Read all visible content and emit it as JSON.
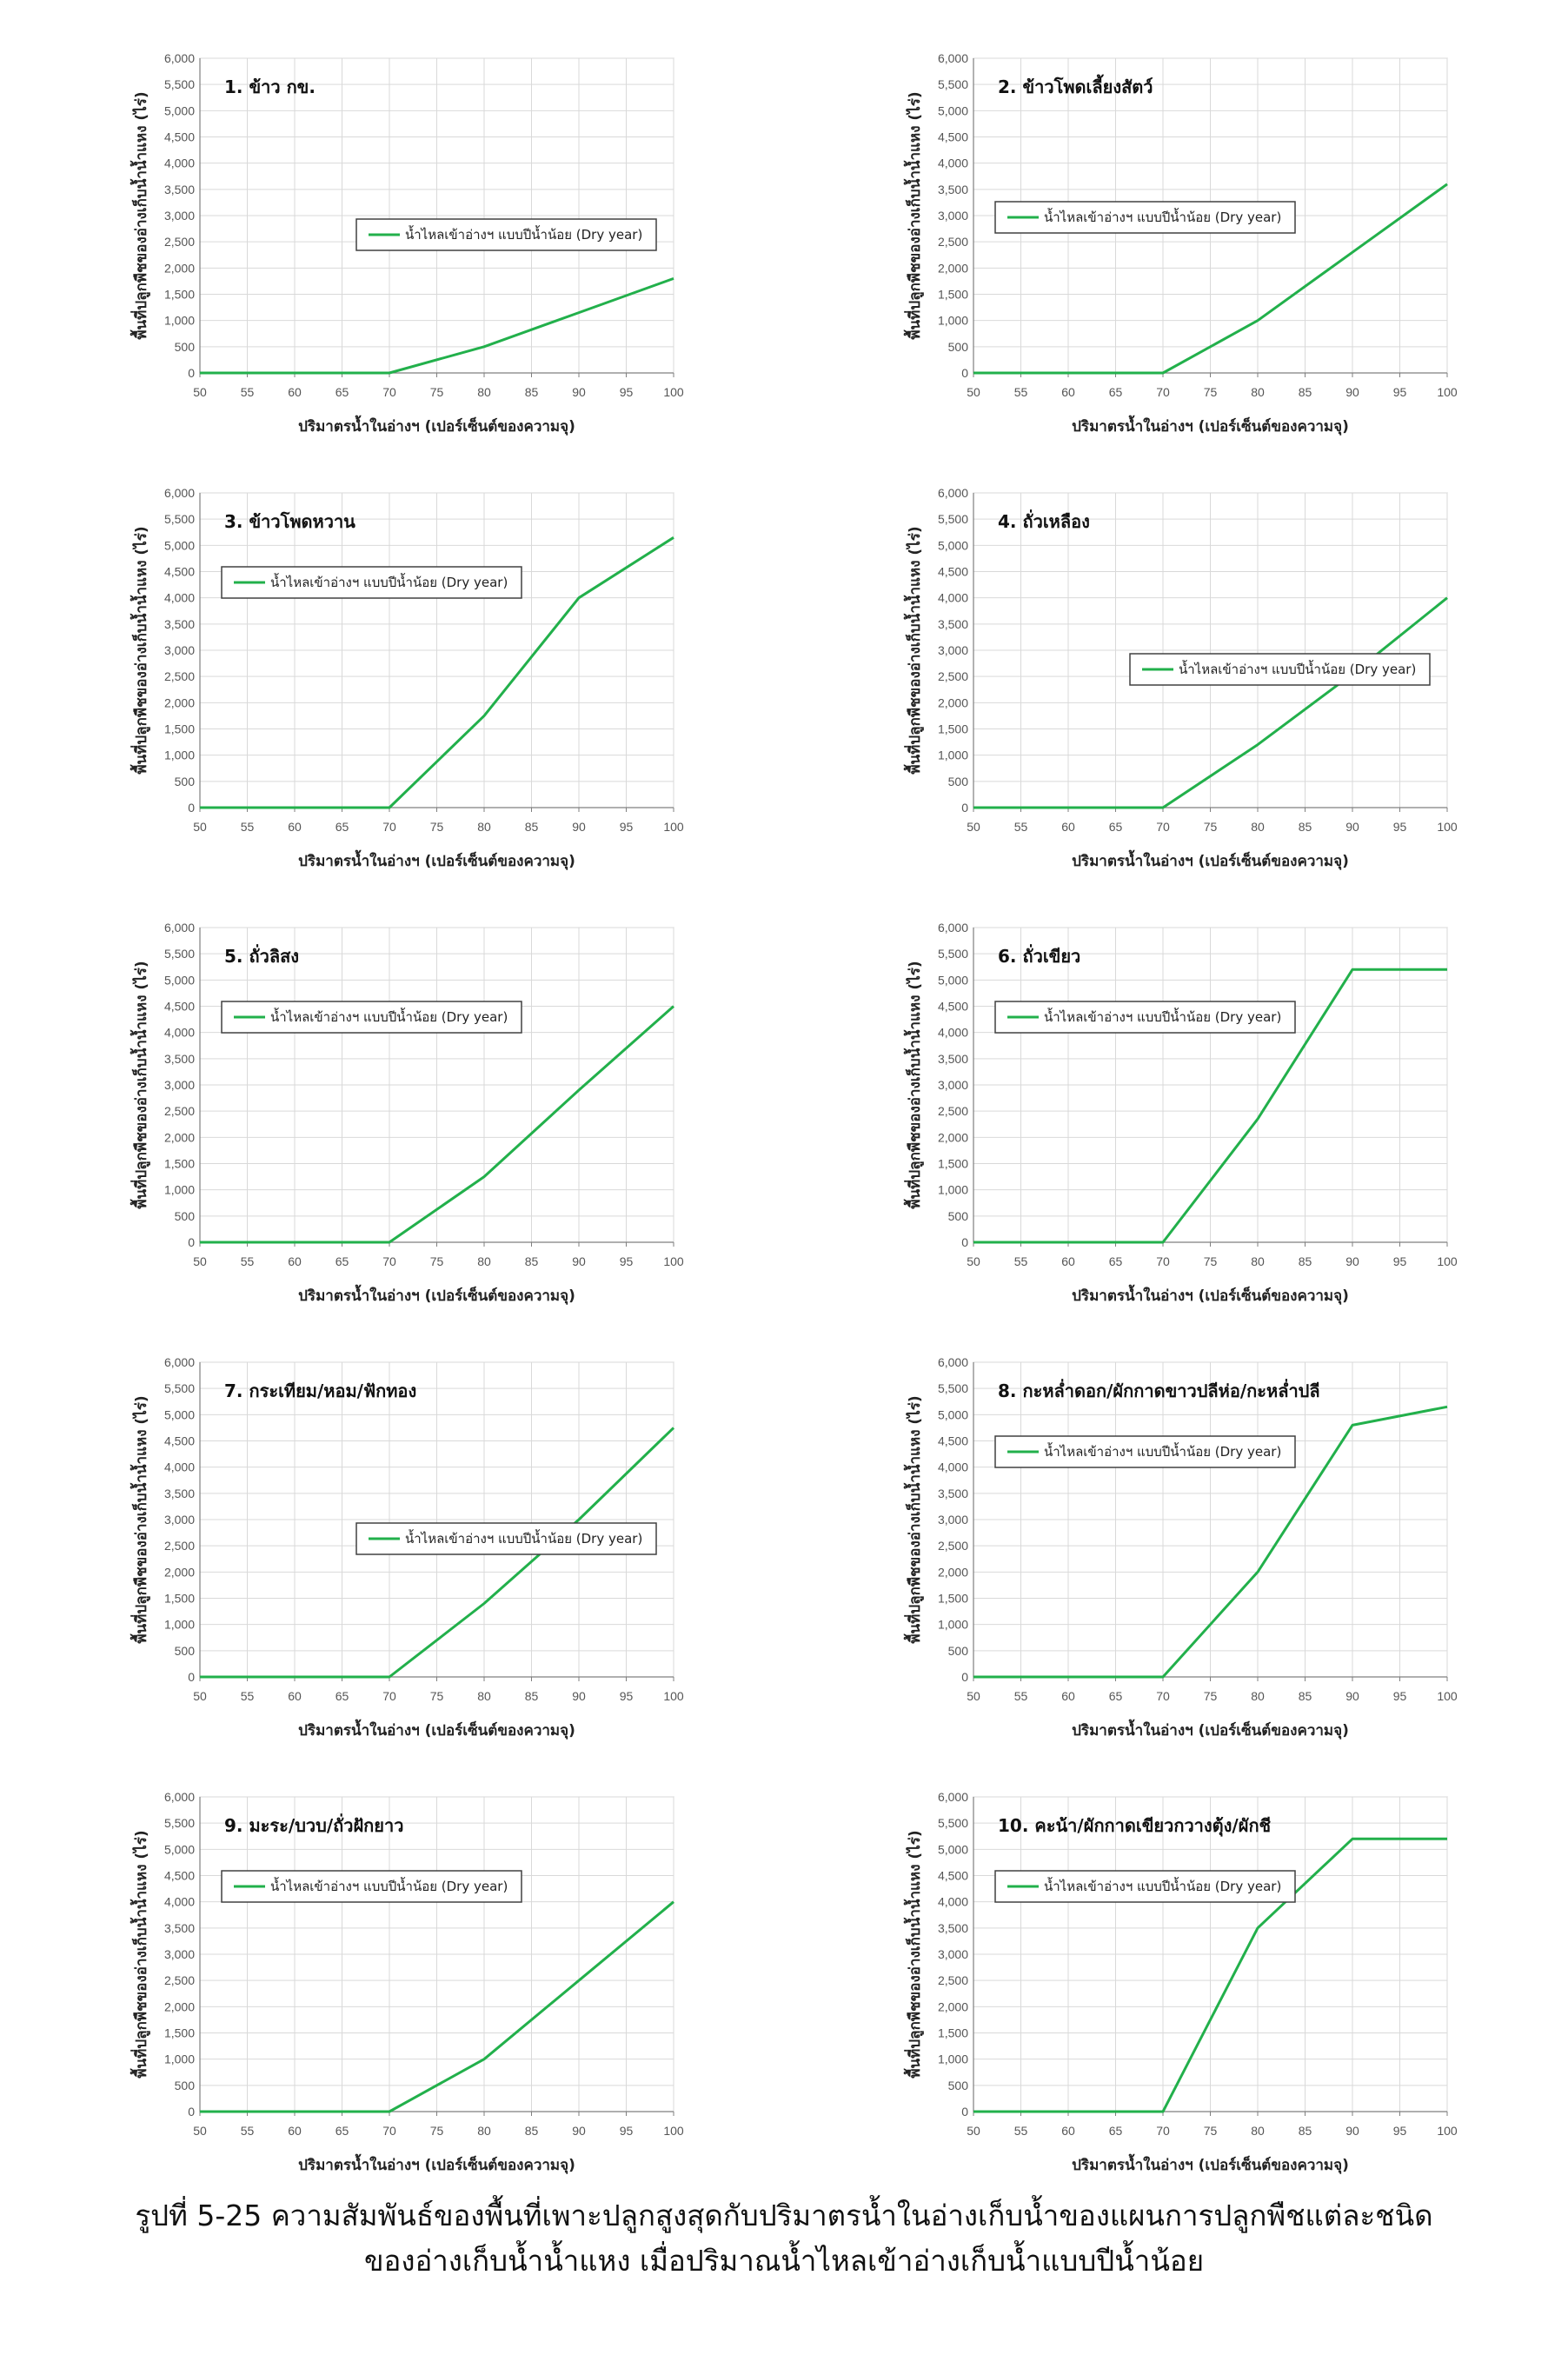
{
  "caption": {
    "line1": "รูปที่ 5-25 ความสัมพันธ์ของพื้นที่เพาะปลูกสูงสุดกับปริมาตรน้ำในอ่างเก็บน้ำของแผนการปลูกพืชแต่ละชนิด",
    "line2": "ของอ่างเก็บน้ำน้ำแหง เมื่อปริมาณน้ำไหลเข้าอ่างเก็บน้ำแบบปีน้ำน้อย"
  },
  "colors": {
    "series": "#22b04b",
    "grid": "#d9d9d9",
    "axis": "#7f7f7f"
  },
  "chart_data": [
    {
      "type": "line",
      "title": "1. ข้าว กข.",
      "xlabel": "ปริมาตรน้ำในอ่างฯ (เปอร์เซ็นต์ของความจุ)",
      "ylabel": "พื้นที่ปลูกพืชของอ่างเก็บน้ำน้ำแหง (ไร่)",
      "xlim": [
        50,
        100
      ],
      "ylim": [
        0,
        6000
      ],
      "legend_position": "center",
      "series": [
        {
          "name": "น้ำไหลเข้าอ่างฯ แบบปีน้ำน้อย (Dry year)",
          "x": [
            50,
            70,
            80,
            90,
            100
          ],
          "y": [
            0,
            0,
            500,
            1150,
            1800
          ]
        }
      ]
    },
    {
      "type": "line",
      "title": "2. ข้าวโพดเลี้ยงสัตว์",
      "xlabel": "ปริมาตรน้ำในอ่างฯ (เปอร์เซ็นต์ของความจุ)",
      "ylabel": "พื้นที่ปลูกพืชของอ่างเก็บน้ำน้ำแหง (ไร่)",
      "xlim": [
        50,
        100
      ],
      "ylim": [
        0,
        6000
      ],
      "legend_position": "left",
      "series": [
        {
          "name": "น้ำไหลเข้าอ่างฯ แบบปีน้ำน้อย (Dry year)",
          "x": [
            50,
            70,
            80,
            90,
            100
          ],
          "y": [
            0,
            0,
            1000,
            2300,
            3600
          ]
        }
      ]
    },
    {
      "type": "line",
      "title": "3. ข้าวโพดหวาน",
      "xlabel": "ปริมาตรน้ำในอ่างฯ (เปอร์เซ็นต์ของความจุ)",
      "ylabel": "พื้นที่ปลูกพืชของอ่างเก็บน้ำน้ำแหง (ไร่)",
      "xlim": [
        50,
        100
      ],
      "ylim": [
        0,
        6000
      ],
      "legend_position": "top-left",
      "series": [
        {
          "name": "น้ำไหลเข้าอ่างฯ แบบปีน้ำน้อย (Dry year)",
          "x": [
            50,
            70,
            80,
            90,
            100
          ],
          "y": [
            0,
            0,
            1750,
            4000,
            5150
          ]
        }
      ]
    },
    {
      "type": "line",
      "title": "4. ถั่วเหลือง",
      "xlabel": "ปริมาตรน้ำในอ่างฯ (เปอร์เซ็นต์ของความจุ)",
      "ylabel": "พื้นที่ปลูกพืชของอ่างเก็บน้ำน้ำแหง (ไร่)",
      "xlim": [
        50,
        100
      ],
      "ylim": [
        0,
        6000
      ],
      "legend_position": "center",
      "series": [
        {
          "name": "น้ำไหลเข้าอ่างฯ แบบปีน้ำน้อย (Dry year)",
          "x": [
            50,
            70,
            80,
            90,
            100
          ],
          "y": [
            0,
            0,
            1200,
            2550,
            4000
          ]
        }
      ]
    },
    {
      "type": "line",
      "title": "5. ถั่วลิสง",
      "xlabel": "ปริมาตรน้ำในอ่างฯ (เปอร์เซ็นต์ของความจุ)",
      "ylabel": "พื้นที่ปลูกพืชของอ่างเก็บน้ำน้ำแหง (ไร่)",
      "xlim": [
        50,
        100
      ],
      "ylim": [
        0,
        6000
      ],
      "legend_position": "top-left",
      "series": [
        {
          "name": "น้ำไหลเข้าอ่างฯ แบบปีน้ำน้อย (Dry year)",
          "x": [
            50,
            70,
            80,
            90,
            100
          ],
          "y": [
            0,
            0,
            1250,
            2900,
            4500
          ]
        }
      ]
    },
    {
      "type": "line",
      "title": "6. ถั่วเขียว",
      "xlabel": "ปริมาตรน้ำในอ่างฯ (เปอร์เซ็นต์ของความจุ)",
      "ylabel": "พื้นที่ปลูกพืชของอ่างเก็บน้ำน้ำแหง (ไร่)",
      "xlim": [
        50,
        100
      ],
      "ylim": [
        0,
        6000
      ],
      "legend_position": "top-left",
      "series": [
        {
          "name": "น้ำไหลเข้าอ่างฯ แบบปีน้ำน้อย (Dry year)",
          "x": [
            50,
            70,
            80,
            90,
            100
          ],
          "y": [
            0,
            0,
            2350,
            5200,
            5200
          ]
        }
      ]
    },
    {
      "type": "line",
      "title": "7. กระเทียม/หอม/ฟักทอง",
      "xlabel": "ปริมาตรน้ำในอ่างฯ (เปอร์เซ็นต์ของความจุ)",
      "ylabel": "พื้นที่ปลูกพืชของอ่างเก็บน้ำน้ำแหง (ไร่)",
      "xlim": [
        50,
        100
      ],
      "ylim": [
        0,
        6000
      ],
      "legend_position": "center",
      "series": [
        {
          "name": "น้ำไหลเข้าอ่างฯ แบบปีน้ำน้อย (Dry year)",
          "x": [
            50,
            70,
            80,
            90,
            100
          ],
          "y": [
            0,
            0,
            1400,
            3000,
            4750
          ]
        }
      ]
    },
    {
      "type": "line",
      "title": "8. กะหล่ำดอก/ผักกาดขาวปลีห่อ/กะหล่ำปลี",
      "xlabel": "ปริมาตรน้ำในอ่างฯ (เปอร์เซ็นต์ของความจุ)",
      "ylabel": "พื้นที่ปลูกพืชของอ่างเก็บน้ำน้ำแหง (ไร่)",
      "xlim": [
        50,
        100
      ],
      "ylim": [
        0,
        6000
      ],
      "legend_position": "top-left",
      "series": [
        {
          "name": "น้ำไหลเข้าอ่างฯ แบบปีน้ำน้อย (Dry year)",
          "x": [
            50,
            70,
            80,
            90,
            100
          ],
          "y": [
            0,
            0,
            2000,
            4800,
            5150
          ]
        }
      ]
    },
    {
      "type": "line",
      "title": "9. มะระ/บวบ/ถั่วฝักยาว",
      "xlabel": "ปริมาตรน้ำในอ่างฯ (เปอร์เซ็นต์ของความจุ)",
      "ylabel": "พื้นที่ปลูกพืชของอ่างเก็บน้ำน้ำแหง (ไร่)",
      "xlim": [
        50,
        100
      ],
      "ylim": [
        0,
        6000
      ],
      "legend_position": "top-left",
      "series": [
        {
          "name": "น้ำไหลเข้าอ่างฯ แบบปีน้ำน้อย (Dry year)",
          "x": [
            50,
            70,
            80,
            90,
            100
          ],
          "y": [
            0,
            0,
            1000,
            2500,
            4000
          ]
        }
      ]
    },
    {
      "type": "line",
      "title": "10. คะน้า/ผักกาดเขียวกวางตุ้ง/ผักชี",
      "xlabel": "ปริมาตรน้ำในอ่างฯ (เปอร์เซ็นต์ของความจุ)",
      "ylabel": "พื้นที่ปลูกพืชของอ่างเก็บน้ำน้ำแหง (ไร่)",
      "xlim": [
        50,
        100
      ],
      "ylim": [
        0,
        6000
      ],
      "legend_position": "top-left",
      "series": [
        {
          "name": "น้ำไหลเข้าอ่างฯ แบบปีน้ำน้อย (Dry year)",
          "x": [
            50,
            70,
            80,
            90,
            100
          ],
          "y": [
            0,
            0,
            3500,
            5200,
            5200
          ]
        }
      ]
    }
  ]
}
